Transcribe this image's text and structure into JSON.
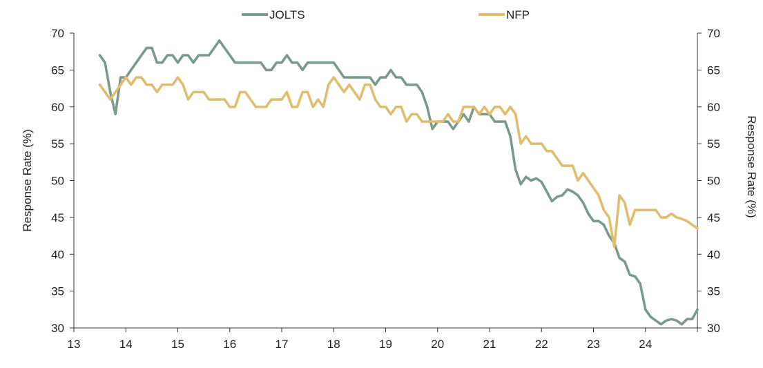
{
  "chart_data": {
    "type": "line",
    "ylabel_left": "Response Rate (%)",
    "ylabel_right": "Response Rate (%)",
    "xlim": [
      13,
      25
    ],
    "ylim": [
      30,
      70
    ],
    "x_ticks": [
      "13",
      "14",
      "15",
      "16",
      "17",
      "18",
      "19",
      "20",
      "21",
      "22",
      "23",
      "24"
    ],
    "y_ticks": [
      "30",
      "35",
      "40",
      "45",
      "50",
      "55",
      "60",
      "65",
      "70"
    ],
    "legend_position": "top",
    "series": [
      {
        "name": "JOLTS",
        "color": "#7a9a8b",
        "points": [
          [
            13.5,
            67
          ],
          [
            13.6,
            66
          ],
          [
            13.7,
            62
          ],
          [
            13.8,
            59
          ],
          [
            13.9,
            64
          ],
          [
            14.0,
            64
          ],
          [
            14.1,
            65
          ],
          [
            14.2,
            66
          ],
          [
            14.3,
            67
          ],
          [
            14.4,
            68
          ],
          [
            14.5,
            68
          ],
          [
            14.6,
            66
          ],
          [
            14.7,
            66
          ],
          [
            14.8,
            67
          ],
          [
            14.9,
            67
          ],
          [
            15.0,
            66
          ],
          [
            15.1,
            67
          ],
          [
            15.2,
            67
          ],
          [
            15.3,
            66
          ],
          [
            15.4,
            67
          ],
          [
            15.5,
            67
          ],
          [
            15.6,
            67
          ],
          [
            15.7,
            68
          ],
          [
            15.8,
            69
          ],
          [
            15.9,
            68
          ],
          [
            16.0,
            67
          ],
          [
            16.1,
            66
          ],
          [
            16.2,
            66
          ],
          [
            16.3,
            66
          ],
          [
            16.4,
            66
          ],
          [
            16.5,
            66
          ],
          [
            16.6,
            66
          ],
          [
            16.7,
            65
          ],
          [
            16.8,
            65
          ],
          [
            16.9,
            66
          ],
          [
            17.0,
            66
          ],
          [
            17.1,
            67
          ],
          [
            17.2,
            66
          ],
          [
            17.3,
            66
          ],
          [
            17.4,
            65
          ],
          [
            17.5,
            66
          ],
          [
            17.6,
            66
          ],
          [
            17.7,
            66
          ],
          [
            17.8,
            66
          ],
          [
            17.9,
            66
          ],
          [
            18.0,
            66
          ],
          [
            18.1,
            65
          ],
          [
            18.2,
            64
          ],
          [
            18.3,
            64
          ],
          [
            18.4,
            64
          ],
          [
            18.5,
            64
          ],
          [
            18.6,
            64
          ],
          [
            18.7,
            64
          ],
          [
            18.8,
            63
          ],
          [
            18.9,
            64
          ],
          [
            19.0,
            64
          ],
          [
            19.1,
            65
          ],
          [
            19.2,
            64
          ],
          [
            19.3,
            64
          ],
          [
            19.4,
            63
          ],
          [
            19.5,
            63
          ],
          [
            19.6,
            63
          ],
          [
            19.7,
            62
          ],
          [
            19.8,
            60
          ],
          [
            19.9,
            57
          ],
          [
            20.0,
            58
          ],
          [
            20.1,
            58
          ],
          [
            20.2,
            58
          ],
          [
            20.3,
            57
          ],
          [
            20.4,
            58
          ],
          [
            20.5,
            59
          ],
          [
            20.6,
            58
          ],
          [
            20.7,
            60
          ],
          [
            20.8,
            59
          ],
          [
            20.9,
            59
          ],
          [
            21.0,
            59
          ],
          [
            21.1,
            58
          ],
          [
            21.2,
            58
          ],
          [
            21.3,
            58
          ],
          [
            21.4,
            56
          ],
          [
            21.5,
            51.5
          ],
          [
            21.6,
            49.5
          ],
          [
            21.7,
            50.5
          ],
          [
            21.8,
            50
          ],
          [
            21.9,
            50.3
          ],
          [
            22.0,
            49.8
          ],
          [
            22.1,
            48.5
          ],
          [
            22.2,
            47.2
          ],
          [
            22.3,
            47.8
          ],
          [
            22.4,
            48
          ],
          [
            22.5,
            48.8
          ],
          [
            22.6,
            48.5
          ],
          [
            22.7,
            48
          ],
          [
            22.8,
            47
          ],
          [
            22.9,
            45.5
          ],
          [
            23.0,
            44.5
          ],
          [
            23.1,
            44.5
          ],
          [
            23.2,
            44
          ],
          [
            23.3,
            42.5
          ],
          [
            23.4,
            41.5
          ],
          [
            23.5,
            39.5
          ],
          [
            23.6,
            39
          ],
          [
            23.7,
            37.2
          ],
          [
            23.8,
            37
          ],
          [
            23.9,
            36
          ],
          [
            24.0,
            32.5
          ],
          [
            24.1,
            31.5
          ],
          [
            24.2,
            31
          ],
          [
            24.3,
            30.5
          ],
          [
            24.4,
            31
          ],
          [
            24.5,
            31.2
          ],
          [
            24.6,
            31
          ],
          [
            24.7,
            30.5
          ],
          [
            24.8,
            31.2
          ],
          [
            24.9,
            31.2
          ],
          [
            25.0,
            32.5
          ]
        ]
      },
      {
        "name": "NFP",
        "color": "#e0bd6f",
        "points": [
          [
            13.5,
            63
          ],
          [
            13.6,
            62
          ],
          [
            13.7,
            61
          ],
          [
            13.8,
            62
          ],
          [
            13.9,
            63
          ],
          [
            14.0,
            64
          ],
          [
            14.1,
            63
          ],
          [
            14.2,
            64
          ],
          [
            14.3,
            64
          ],
          [
            14.4,
            63
          ],
          [
            14.5,
            63
          ],
          [
            14.6,
            62
          ],
          [
            14.7,
            63
          ],
          [
            14.8,
            63
          ],
          [
            14.9,
            63
          ],
          [
            15.0,
            64
          ],
          [
            15.1,
            63
          ],
          [
            15.2,
            61
          ],
          [
            15.3,
            62
          ],
          [
            15.4,
            62
          ],
          [
            15.5,
            62
          ],
          [
            15.6,
            61
          ],
          [
            15.7,
            61
          ],
          [
            15.8,
            61
          ],
          [
            15.9,
            61
          ],
          [
            16.0,
            60
          ],
          [
            16.1,
            60
          ],
          [
            16.2,
            62
          ],
          [
            16.3,
            62
          ],
          [
            16.4,
            61
          ],
          [
            16.5,
            60
          ],
          [
            16.6,
            60
          ],
          [
            16.7,
            60
          ],
          [
            16.8,
            61
          ],
          [
            16.9,
            61
          ],
          [
            17.0,
            61
          ],
          [
            17.1,
            62
          ],
          [
            17.2,
            60
          ],
          [
            17.3,
            60
          ],
          [
            17.4,
            62
          ],
          [
            17.5,
            62
          ],
          [
            17.6,
            60
          ],
          [
            17.7,
            61
          ],
          [
            17.8,
            60
          ],
          [
            17.9,
            63
          ],
          [
            18.0,
            64
          ],
          [
            18.1,
            63
          ],
          [
            18.2,
            62
          ],
          [
            18.3,
            63
          ],
          [
            18.4,
            62
          ],
          [
            18.5,
            61
          ],
          [
            18.6,
            63
          ],
          [
            18.7,
            63
          ],
          [
            18.8,
            61
          ],
          [
            18.9,
            60
          ],
          [
            19.0,
            60
          ],
          [
            19.1,
            59
          ],
          [
            19.2,
            60
          ],
          [
            19.3,
            60
          ],
          [
            19.4,
            58
          ],
          [
            19.5,
            59
          ],
          [
            19.6,
            59
          ],
          [
            19.7,
            58
          ],
          [
            19.8,
            58
          ],
          [
            19.9,
            58
          ],
          [
            20.0,
            58
          ],
          [
            20.1,
            58
          ],
          [
            20.2,
            59
          ],
          [
            20.3,
            58
          ],
          [
            20.4,
            58
          ],
          [
            20.5,
            60
          ],
          [
            20.6,
            60
          ],
          [
            20.7,
            60
          ],
          [
            20.8,
            59
          ],
          [
            20.9,
            60
          ],
          [
            21.0,
            59
          ],
          [
            21.1,
            60
          ],
          [
            21.2,
            60
          ],
          [
            21.3,
            59
          ],
          [
            21.4,
            60
          ],
          [
            21.5,
            59
          ],
          [
            21.6,
            55
          ],
          [
            21.7,
            56
          ],
          [
            21.8,
            55
          ],
          [
            21.9,
            55
          ],
          [
            22.0,
            55
          ],
          [
            22.1,
            54
          ],
          [
            22.2,
            54
          ],
          [
            22.3,
            53
          ],
          [
            22.4,
            52
          ],
          [
            22.5,
            52
          ],
          [
            22.6,
            52
          ],
          [
            22.7,
            50
          ],
          [
            22.8,
            51
          ],
          [
            22.9,
            50
          ],
          [
            23.0,
            49
          ],
          [
            23.1,
            48
          ],
          [
            23.2,
            46
          ],
          [
            23.3,
            45
          ],
          [
            23.4,
            41
          ],
          [
            23.5,
            48
          ],
          [
            23.6,
            47
          ],
          [
            23.7,
            44
          ],
          [
            23.8,
            46
          ],
          [
            23.9,
            46
          ],
          [
            24.0,
            46
          ],
          [
            24.1,
            46
          ],
          [
            24.2,
            46
          ],
          [
            24.3,
            45
          ],
          [
            24.4,
            45
          ],
          [
            24.5,
            45.5
          ],
          [
            24.6,
            45
          ],
          [
            24.7,
            44.8
          ],
          [
            24.8,
            44.5
          ],
          [
            24.9,
            44
          ],
          [
            25.0,
            43.5
          ]
        ]
      }
    ]
  }
}
